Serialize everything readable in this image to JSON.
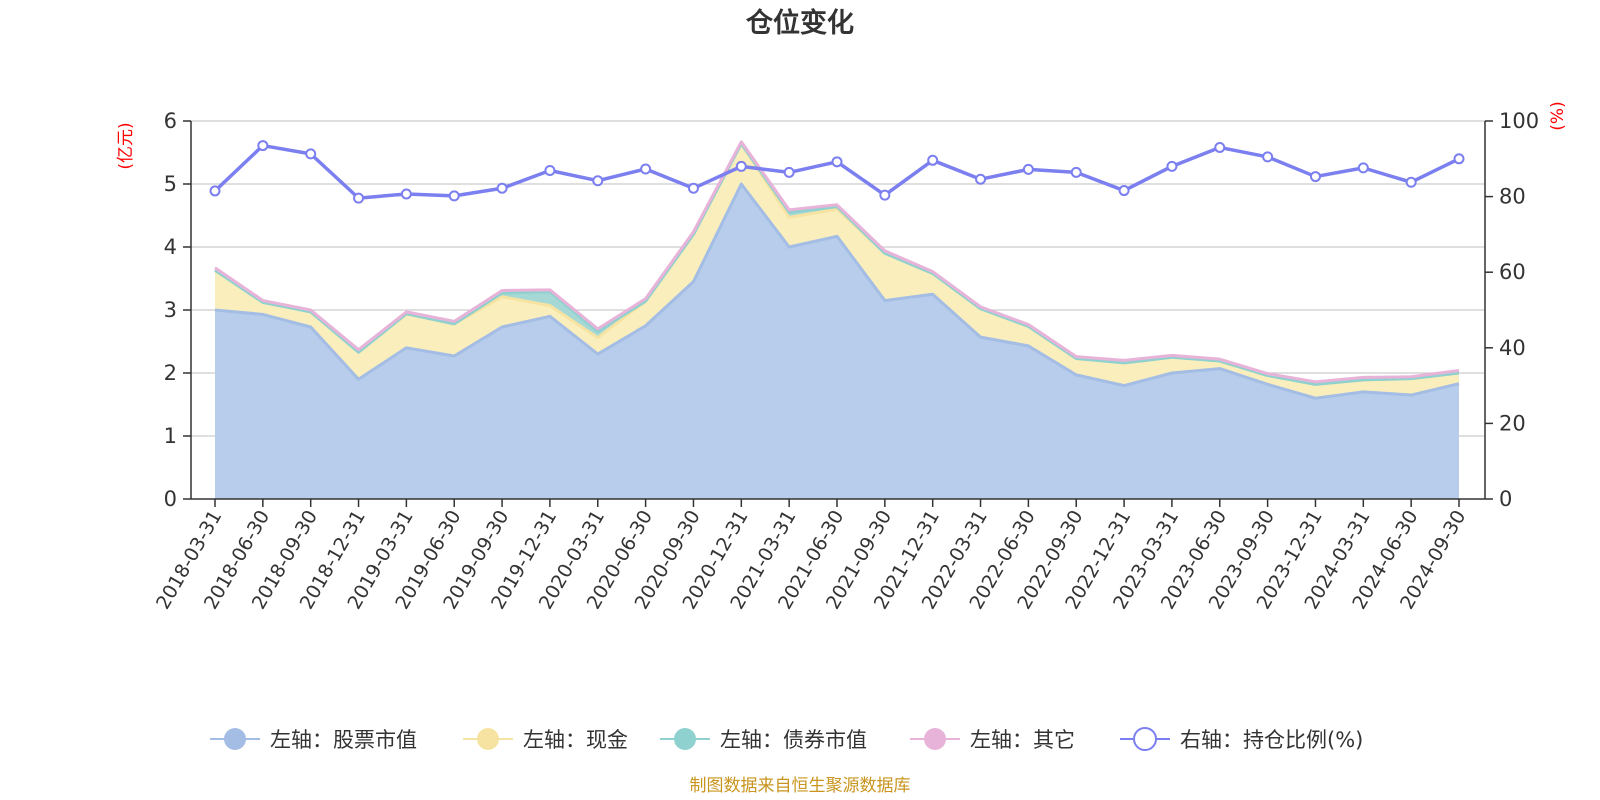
{
  "chart_data": {
    "type": "area",
    "title": "仓位变化",
    "left_unit": "(亿元)",
    "right_unit": "(%)",
    "source": "制图数据来自恒生聚源数据库",
    "ylim_left": [
      0,
      6
    ],
    "yticks_left": [
      0,
      1,
      2,
      3,
      4,
      5,
      6
    ],
    "ylim_right": [
      0,
      100
    ],
    "yticks_right": [
      0,
      20,
      40,
      60,
      80,
      100
    ],
    "grid": true,
    "legend_position": "bottom",
    "categories": [
      "2018-03-31",
      "2018-06-30",
      "2018-09-30",
      "2018-12-31",
      "2019-03-31",
      "2019-06-30",
      "2019-09-30",
      "2019-12-31",
      "2020-03-31",
      "2020-06-30",
      "2020-09-30",
      "2020-12-31",
      "2021-03-31",
      "2021-06-30",
      "2021-09-30",
      "2021-12-31",
      "2022-03-31",
      "2022-06-30",
      "2022-09-30",
      "2022-12-31",
      "2023-03-31",
      "2023-06-30",
      "2023-09-30",
      "2023-12-31",
      "2024-03-31",
      "2024-06-30",
      "2024-09-30"
    ],
    "series": [
      {
        "name": "左轴：股票市值",
        "axis": "left",
        "stack": true,
        "color": "#a3bde4",
        "fill": "#b8cceb",
        "values": [
          3.0,
          2.93,
          2.73,
          1.9,
          2.4,
          2.27,
          2.73,
          2.9,
          2.3,
          2.75,
          3.45,
          5.0,
          4.0,
          4.17,
          3.15,
          3.25,
          2.57,
          2.43,
          1.97,
          1.8,
          2.0,
          2.07,
          1.82,
          1.6,
          1.7,
          1.65,
          1.83
        ]
      },
      {
        "name": "左轴：现金",
        "axis": "left",
        "stack": true,
        "color": "#f7e3a1",
        "fill": "#fbeebd",
        "values": [
          0.63,
          0.19,
          0.24,
          0.43,
          0.54,
          0.51,
          0.48,
          0.17,
          0.26,
          0.39,
          0.75,
          0.64,
          0.47,
          0.43,
          0.75,
          0.33,
          0.45,
          0.31,
          0.26,
          0.36,
          0.25,
          0.12,
          0.14,
          0.22,
          0.19,
          0.26,
          0.17
        ]
      },
      {
        "name": "左轴：债券市值",
        "axis": "left",
        "stack": true,
        "color": "#8fd1cf",
        "fill": "#a6d9d6",
        "values": [
          0,
          0,
          0,
          0,
          0,
          0,
          0.06,
          0.22,
          0.1,
          0,
          0,
          0,
          0.08,
          0.04,
          0,
          0,
          0,
          0,
          0,
          0,
          0,
          0,
          0,
          0,
          0,
          0,
          0
        ]
      },
      {
        "name": "左轴：其它",
        "axis": "left",
        "stack": true,
        "color": "#e8b3d9",
        "fill": "#ecc2e0",
        "values": [
          0.04,
          0.03,
          0.03,
          0.04,
          0.03,
          0.04,
          0.04,
          0.03,
          0.04,
          0.04,
          0.04,
          0.03,
          0.04,
          0.03,
          0.04,
          0.03,
          0.03,
          0.03,
          0.03,
          0.04,
          0.03,
          0.03,
          0.03,
          0.04,
          0.04,
          0.03,
          0.04
        ]
      },
      {
        "name": "右轴：持仓比例(%)",
        "axis": "right",
        "type": "line",
        "color": "#7b7fef",
        "values": [
          81.5,
          93.5,
          91.3,
          79.6,
          80.7,
          80.2,
          82.2,
          86.9,
          84.2,
          87.3,
          82.2,
          88.0,
          86.4,
          89.2,
          80.4,
          89.6,
          84.6,
          87.2,
          86.4,
          81.6,
          88.0,
          93.0,
          90.5,
          85.3,
          87.6,
          83.8,
          90.0
        ]
      }
    ]
  }
}
